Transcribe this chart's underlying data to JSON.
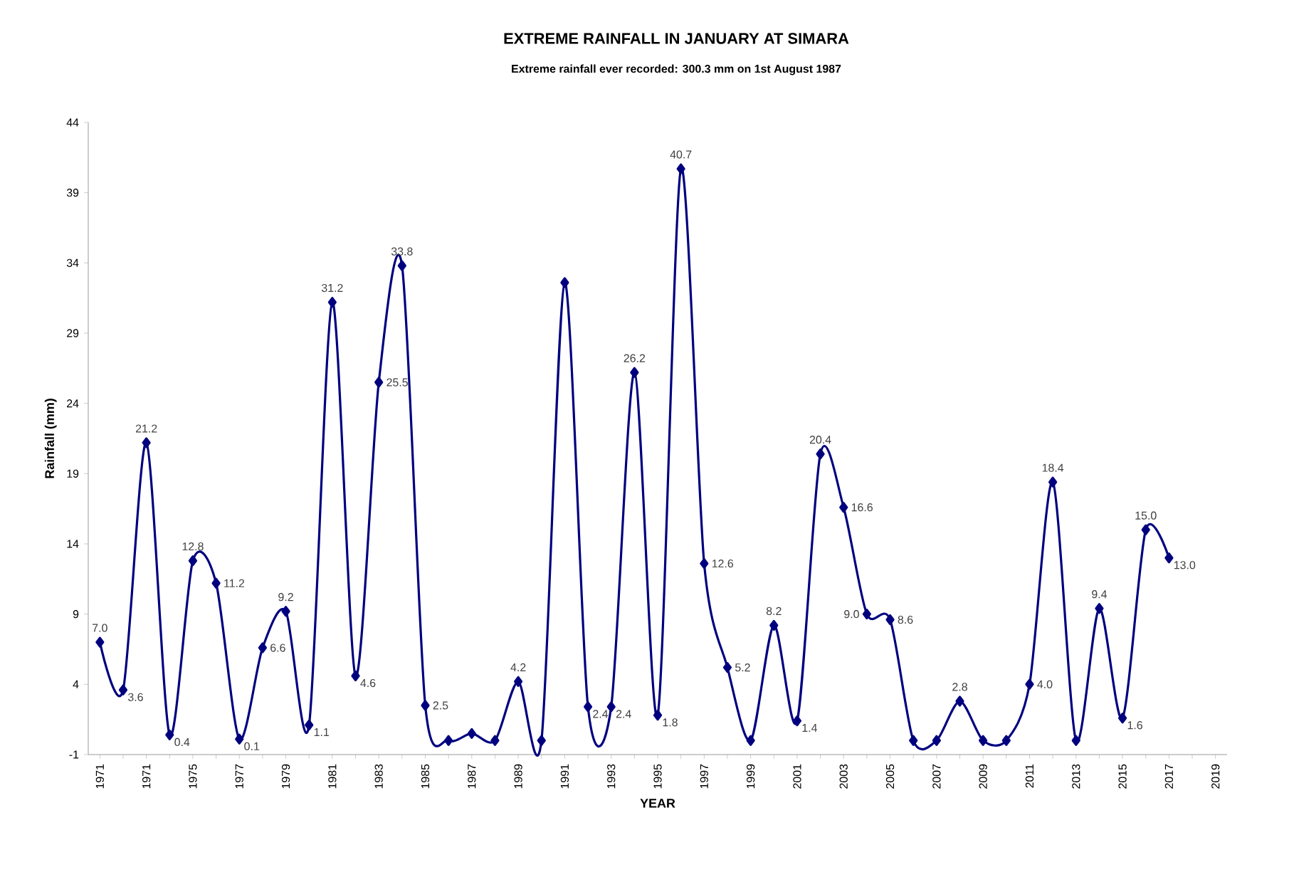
{
  "chart_data": {
    "type": "line",
    "title": "EXTREME RAINFALL IN JANUARY AT SIMARA",
    "subtitle": "Extreme rainfall ever recorded: 300.3 mm on 1st August 1987",
    "xlabel": "YEAR",
    "ylabel": "Rainfall (mm)",
    "categories": [
      "1971",
      null,
      "1971",
      null,
      "1975",
      null,
      "1977",
      null,
      "1979",
      null,
      "1981",
      null,
      "1983",
      null,
      "1985",
      null,
      "1987",
      null,
      "1989",
      null,
      "1991",
      null,
      "1993",
      null,
      "1995",
      null,
      "1997",
      null,
      "1999",
      null,
      "2001",
      null,
      "2003",
      null,
      "2005",
      null,
      "2007",
      null,
      "2009",
      null,
      "2011",
      null,
      "2013",
      null,
      "2015",
      null,
      "2017",
      null,
      "2019"
    ],
    "series": [
      {
        "color": "#00007f",
        "values": [
          7.0,
          3.6,
          21.2,
          0.4,
          12.8,
          11.2,
          0.1,
          6.6,
          9.2,
          1.1,
          31.2,
          4.6,
          25.5,
          33.8,
          2.5,
          0,
          0.5,
          0,
          4.2,
          0,
          32.6,
          2.4,
          2.4,
          26.2,
          1.8,
          40.7,
          12.6,
          5.2,
          0,
          8.2,
          1.4,
          20.4,
          16.6,
          9.0,
          8.6,
          0,
          0,
          2.8,
          0,
          0,
          4.0,
          18.4,
          0,
          9.4,
          1.6,
          15.0,
          13.0,
          null,
          null
        ],
        "value_labels": [
          "7.0",
          "3.6",
          "21.2",
          "0.4",
          "12.8",
          "11.2",
          "0.1",
          "6.6",
          "9.2",
          "1.1",
          "31.2",
          "4.6",
          "25.5",
          "33.8",
          "2.5",
          null,
          null,
          null,
          "4.2",
          null,
          null,
          "2.4",
          "2.4",
          "26.2",
          "1.8",
          "40.7",
          "12.6",
          "5.2",
          null,
          "8.2",
          "1.4",
          "20.4",
          "16.6",
          "9.0",
          "8.6",
          null,
          null,
          "2.8",
          null,
          null,
          "4.0",
          "18.4",
          null,
          "9.4",
          "1.6",
          "15.0",
          "13.0",
          null,
          null
        ]
      }
    ],
    "ylim": [
      -1,
      44
    ],
    "yticks": [
      -1,
      4,
      9,
      14,
      19,
      24,
      29,
      34,
      39,
      44
    ],
    "marker": "diamond",
    "line_style": "solid",
    "grid": false
  }
}
